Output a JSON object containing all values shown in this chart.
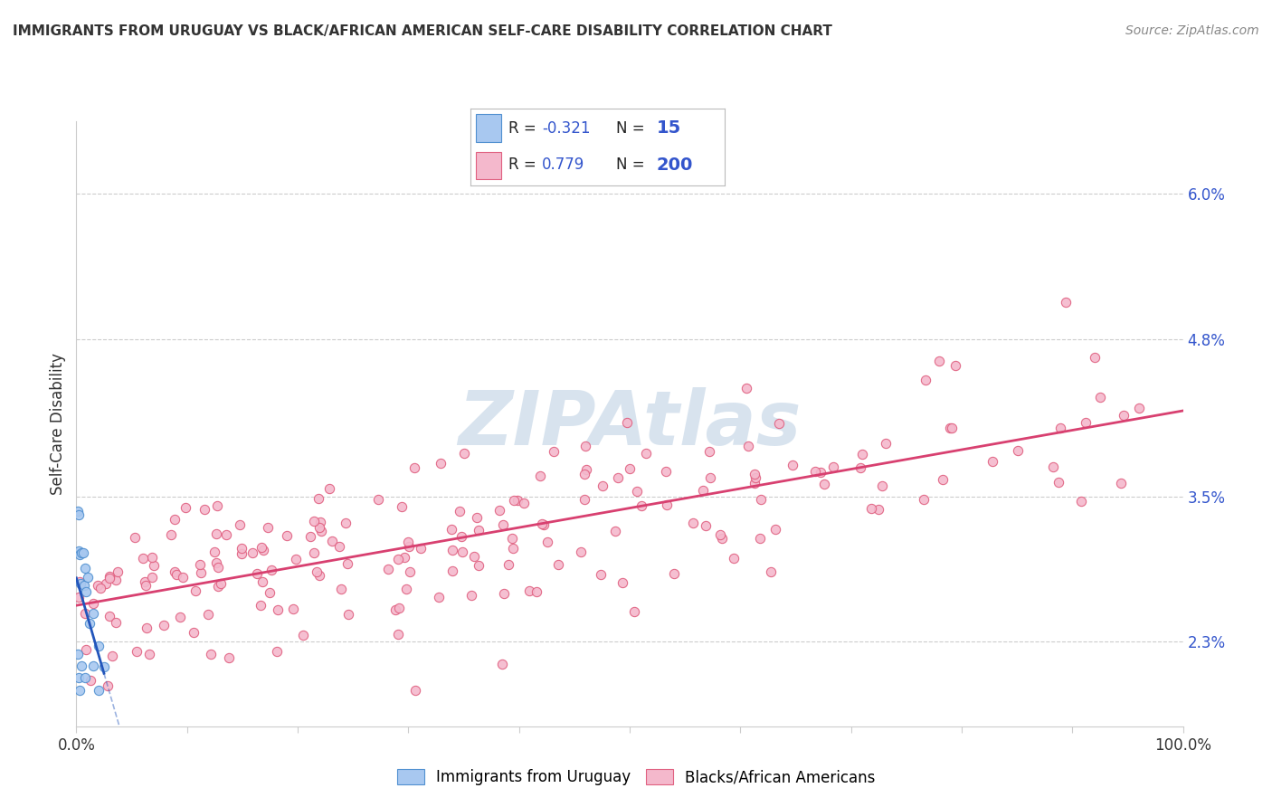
{
  "title": "IMMIGRANTS FROM URUGUAY VS BLACK/AFRICAN AMERICAN SELF-CARE DISABILITY CORRELATION CHART",
  "source": "Source: ZipAtlas.com",
  "ylabel": "Self-Care Disability",
  "ytick_labels": [
    "2.3%",
    "3.5%",
    "4.8%",
    "6.0%"
  ],
  "ytick_values": [
    0.023,
    0.035,
    0.048,
    0.06
  ],
  "ylim": [
    0.016,
    0.066
  ],
  "xlim": [
    0.0,
    1.0
  ],
  "legend_blue_R": "-0.321",
  "legend_blue_N": "15",
  "legend_pink_R": "0.779",
  "legend_pink_N": "200",
  "legend_label_blue": "Immigrants from Uruguay",
  "legend_label_pink": "Blacks/African Americans",
  "blue_fill_color": "#a8c8f0",
  "pink_fill_color": "#f4b8cc",
  "blue_edge_color": "#5090d0",
  "pink_edge_color": "#e06080",
  "blue_line_color": "#2255bb",
  "pink_line_color": "#d84070",
  "watermark_color": "#c8d8e8",
  "grid_color": "#cccccc",
  "background_color": "#ffffff",
  "title_color": "#333333",
  "source_color": "#888888",
  "ytick_color": "#3355cc",
  "xtick_color": "#333333",
  "ylabel_color": "#333333"
}
